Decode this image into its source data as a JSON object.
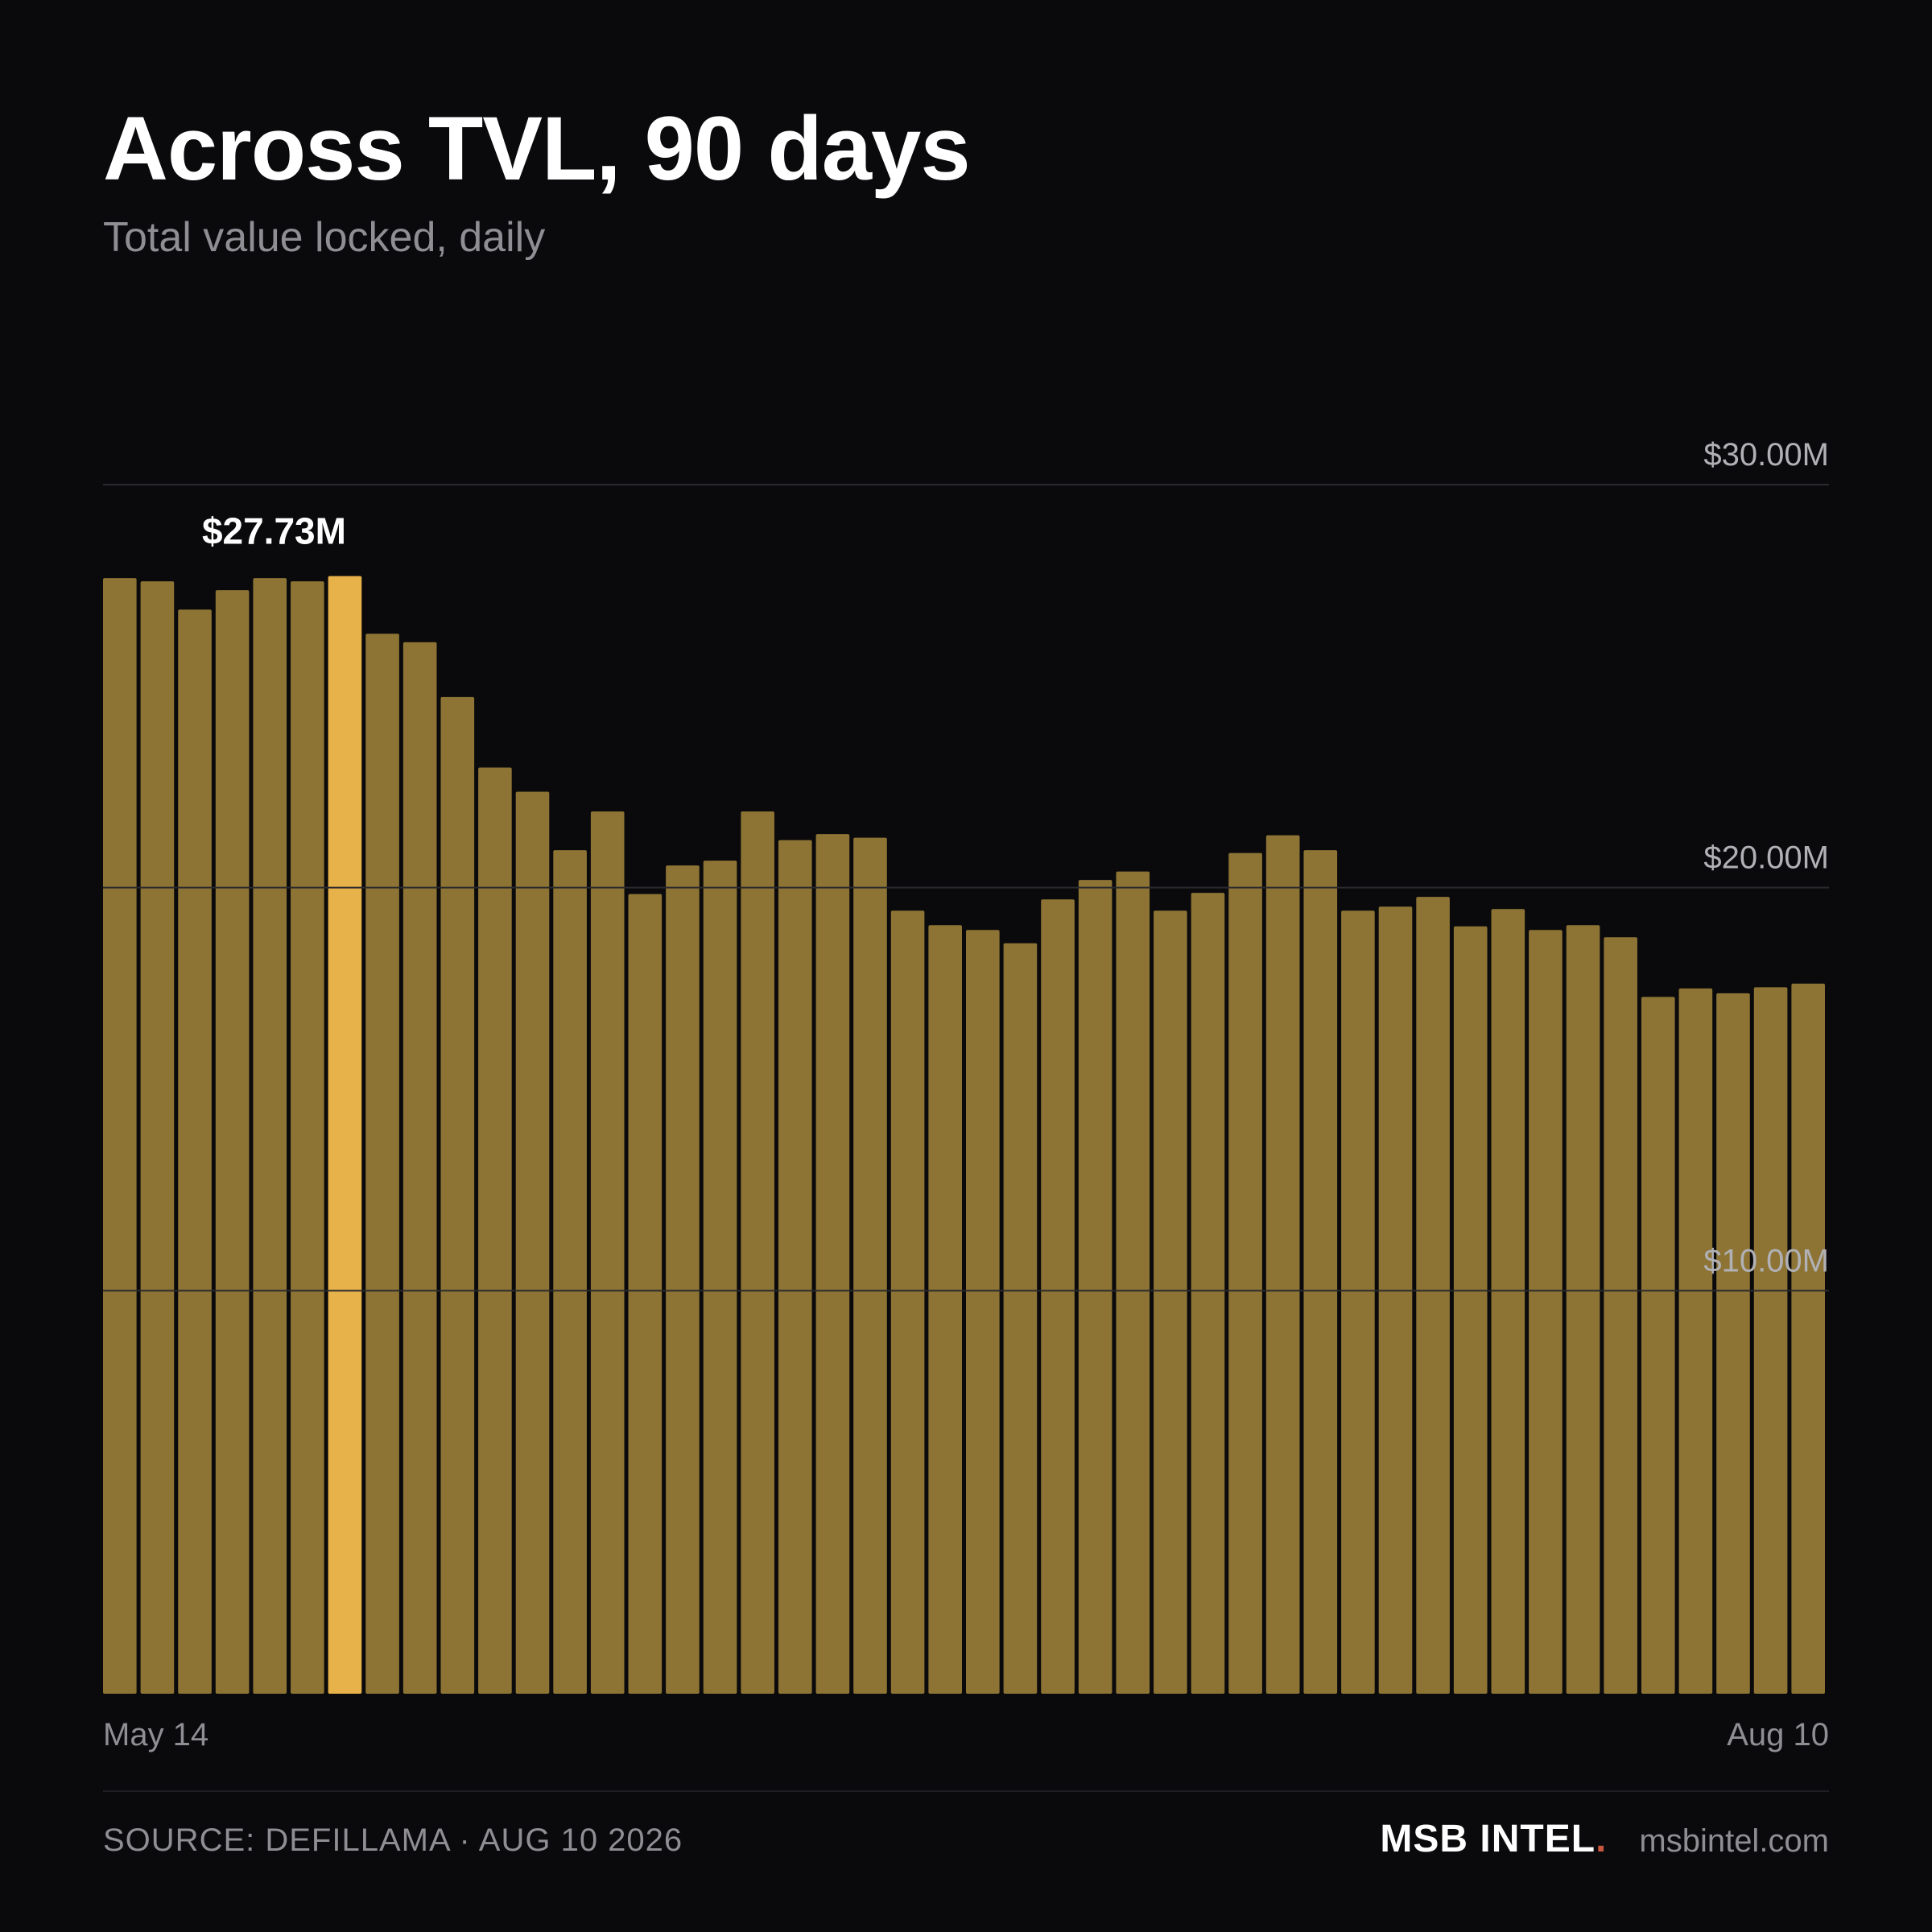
{
  "header": {
    "title": "Across TVL, 90 days",
    "subtitle": "Total value locked, daily"
  },
  "footer": {
    "source": "SOURCE: DEFILLAMA · AUG 10 2026",
    "brand_name": "MSB INTEL",
    "brand_dot": ".",
    "brand_url": "msbintel.com"
  },
  "colors": {
    "background": "#0a0a0c",
    "bar": "#8d7435",
    "highlight_bar": "#e8b24a",
    "gridline": "#2a2a2e",
    "tick_label": "#b0b0b5",
    "brand_dot": "#c8553d"
  },
  "chart_data": {
    "type": "bar",
    "title": "Across TVL, 90 days",
    "subtitle": "Total value locked, daily",
    "xlabel": "",
    "ylabel": "",
    "ylim": [
      0,
      30
    ],
    "y_unit": "$M",
    "y_ticks": [
      {
        "value": 10,
        "label": "$10.00M"
      },
      {
        "value": 20,
        "label": "$20.00M"
      },
      {
        "value": 30,
        "label": "$30.00M"
      }
    ],
    "x_labels": {
      "start": "May 14",
      "end": "Aug 10"
    },
    "grid": true,
    "values": [
      27.68,
      27.6,
      26.9,
      27.38,
      27.68,
      27.6,
      27.73,
      26.3,
      26.09,
      24.73,
      22.98,
      22.38,
      20.93,
      21.89,
      19.84,
      20.55,
      20.67,
      21.89,
      21.18,
      21.33,
      21.24,
      19.43,
      19.07,
      18.95,
      18.62,
      19.71,
      20.19,
      20.4,
      19.43,
      19.87,
      20.86,
      21.3,
      20.93,
      19.43,
      19.53,
      19.77,
      19.04,
      19.47,
      18.95,
      19.07,
      18.77,
      17.29,
      17.5,
      17.38,
      17.53,
      17.62
    ],
    "highlight_index": 6,
    "highlight_label": "$27.73M"
  }
}
